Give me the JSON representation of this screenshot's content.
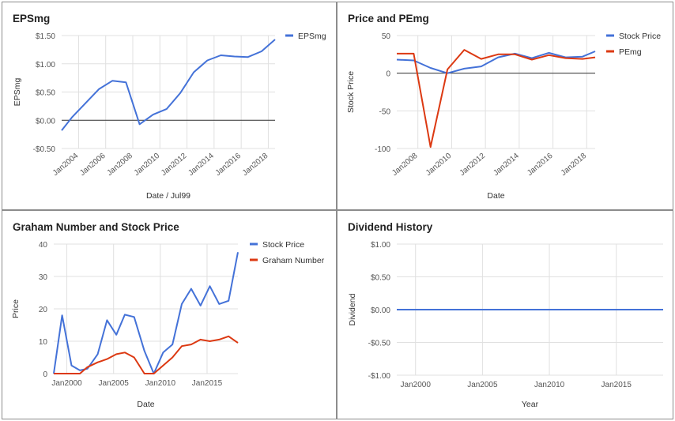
{
  "colors": {
    "blue": "#4472d8",
    "red": "#dc3912",
    "grid": "#e0e0e0",
    "zero": "#333333",
    "axis_text": "#555555"
  },
  "charts": [
    {
      "title": "EPSmg",
      "chart_data": {
        "type": "line",
        "xlabel": "Date / Jul99",
        "ylabel": "EPSmg",
        "ylim": [
          -0.5,
          1.5
        ],
        "yticks": [
          -0.5,
          0,
          0.5,
          1.0,
          1.5
        ],
        "ytick_labels": [
          "-$0.50",
          "$0.00",
          "$0.50",
          "$1.00",
          "$1.50"
        ],
        "xlim": [
          2002.75,
          2018.5
        ],
        "xticks": [
          2004,
          2006,
          2008,
          2010,
          2012,
          2014,
          2016,
          2018
        ],
        "xtick_labels": [
          "Jan2004",
          "Jan2006",
          "Jan2008",
          "Jan2010",
          "Jan2012",
          "Jan2014",
          "Jan2016",
          "Jan2018"
        ],
        "x_label_rotate": true,
        "zero_line": true,
        "legend": "right",
        "series": [
          {
            "name": "EPSmg",
            "color": "#4472d8",
            "x": [
              2002.75,
              2003.5,
              2004.5,
              2005.5,
              2006.5,
              2007.5,
              2008.5,
              2009.5,
              2010.5,
              2011.5,
              2012.5,
              2013.5,
              2014.5,
              2015.5,
              2016.5,
              2017.5,
              2018.5
            ],
            "y": [
              -0.18,
              0.05,
              0.3,
              0.55,
              0.7,
              0.67,
              -0.07,
              0.1,
              0.2,
              0.48,
              0.85,
              1.06,
              1.15,
              1.13,
              1.12,
              1.22,
              1.43
            ]
          }
        ]
      }
    },
    {
      "title": "Price and PEmg",
      "chart_data": {
        "type": "line",
        "xlabel": "Date",
        "ylabel": "Stock Price",
        "ylim": [
          -100,
          50
        ],
        "yticks": [
          -100,
          -50,
          0,
          50
        ],
        "ytick_labels": [
          "-100",
          "-50",
          "0",
          "50"
        ],
        "xlim": [
          2006.75,
          2018.5
        ],
        "xticks": [
          2008,
          2010,
          2012,
          2014,
          2016,
          2018
        ],
        "xtick_labels": [
          "Jan2008",
          "Jan2010",
          "Jan2012",
          "Jan2014",
          "Jan2016",
          "Jan2018"
        ],
        "x_label_rotate": true,
        "zero_line": true,
        "legend": "right",
        "series": [
          {
            "name": "Stock Price",
            "color": "#4472d8",
            "x": [
              2006.75,
              2007.75,
              2008.75,
              2009.75,
              2010.75,
              2011.75,
              2012.75,
              2013.75,
              2014.75,
              2015.75,
              2016.75,
              2017.75,
              2018.5
            ],
            "y": [
              18,
              17,
              7,
              0,
              6,
              9,
              21,
              26,
              20,
              27,
              21,
              22,
              29
            ]
          },
          {
            "name": "PEmg",
            "color": "#dc3912",
            "x": [
              2006.75,
              2007.75,
              2008.75,
              2009.75,
              2010.75,
              2011.75,
              2012.75,
              2013.75,
              2014.75,
              2015.75,
              2016.75,
              2017.75,
              2018.5
            ],
            "y": [
              26,
              26,
              -98,
              5,
              31,
              19,
              25,
              25,
              18,
              24,
              20,
              19,
              21
            ]
          }
        ]
      }
    },
    {
      "title": "Graham Number and Stock Price",
      "chart_data": {
        "type": "line",
        "xlabel": "Date",
        "ylabel": "Price",
        "ylim": [
          0,
          40
        ],
        "yticks": [
          0,
          10,
          20,
          30,
          40
        ],
        "ytick_labels": [
          "0",
          "10",
          "20",
          "30",
          "40"
        ],
        "xlim": [
          1998.6,
          2018.3
        ],
        "xticks": [
          2000,
          2005,
          2010,
          2015
        ],
        "xtick_labels": [
          "Jan2000",
          "Jan2005",
          "Jan2010",
          "Jan2015"
        ],
        "x_label_rotate": false,
        "zero_line": false,
        "legend": "right",
        "series": [
          {
            "name": "Stock Price",
            "color": "#4472d8",
            "x": [
              1998.6,
              1999.5,
              2000.5,
              2001.4,
              2002.2,
              2003.3,
              2004.3,
              2005.3,
              2006.2,
              2007.2,
              2008.3,
              2009.3,
              2010.3,
              2011.3,
              2012.3,
              2013.3,
              2014.3,
              2015.3,
              2016.3,
              2017.3,
              2018.3
            ],
            "y": [
              0,
              18,
              2.5,
              1,
              1.5,
              6,
              16.5,
              12,
              18.2,
              17.5,
              7,
              0,
              6.5,
              9,
              21.5,
              26.2,
              21,
              27,
              21.5,
              22.5,
              37.5
            ]
          },
          {
            "name": "Graham Number",
            "color": "#dc3912",
            "x": [
              1998.6,
              1999.5,
              2000.5,
              2001.4,
              2002.2,
              2003.3,
              2004.3,
              2005.3,
              2006.2,
              2007.2,
              2008.3,
              2009.3,
              2010.3,
              2011.3,
              2012.3,
              2013.3,
              2014.3,
              2015.3,
              2016.3,
              2017.3,
              2018.3
            ],
            "y": [
              0,
              0,
              0,
              0,
              2,
              3.5,
              4.5,
              6,
              6.5,
              5,
              0,
              0,
              2.5,
              5,
              8.5,
              9,
              10.5,
              10,
              10.5,
              11.5,
              9.5
            ]
          }
        ]
      }
    },
    {
      "title": "Dividend History",
      "chart_data": {
        "type": "line",
        "xlabel": "Year",
        "ylabel": "Dividend",
        "ylim": [
          -1,
          1
        ],
        "yticks": [
          -1,
          -0.5,
          0,
          0.5,
          1
        ],
        "ytick_labels": [
          "-$1.00",
          "-$0.50",
          "$0.00",
          "$0.50",
          "$1.00"
        ],
        "xlim": [
          1998.6,
          2018.5
        ],
        "xticks": [
          2000,
          2005,
          2010,
          2015
        ],
        "xtick_labels": [
          "Jan2000",
          "Jan2005",
          "Jan2010",
          "Jan2015"
        ],
        "x_label_rotate": false,
        "zero_line": false,
        "legend": "none",
        "series": [
          {
            "name": "",
            "color": "#4472d8",
            "x": [
              1998.6,
              2018.5
            ],
            "y": [
              0,
              0
            ]
          }
        ]
      }
    }
  ]
}
